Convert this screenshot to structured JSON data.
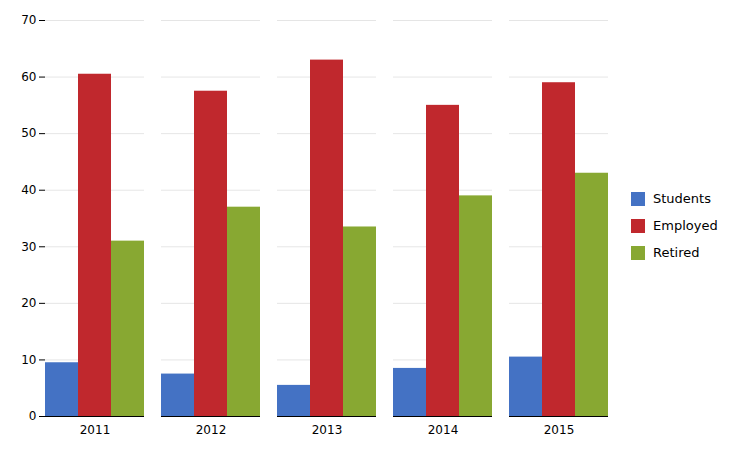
{
  "chart_data": {
    "type": "bar",
    "categories": [
      "2011",
      "2012",
      "2013",
      "2014",
      "2015"
    ],
    "series": [
      {
        "name": "Students",
        "color": "#4472C4",
        "values": [
          9.5,
          7.5,
          5.5,
          8.5,
          10.5
        ]
      },
      {
        "name": "Employed",
        "color": "#C0282D",
        "values": [
          60.5,
          57.5,
          63.0,
          55.0,
          59.0
        ]
      },
      {
        "name": "Retired",
        "color": "#88A832",
        "values": [
          31.0,
          37.0,
          33.5,
          39.0,
          43.0
        ]
      }
    ],
    "ylim": [
      0,
      70
    ],
    "yticks": [
      0,
      10,
      20,
      30,
      40,
      50,
      60,
      70
    ],
    "grid": true,
    "legend": "right"
  }
}
